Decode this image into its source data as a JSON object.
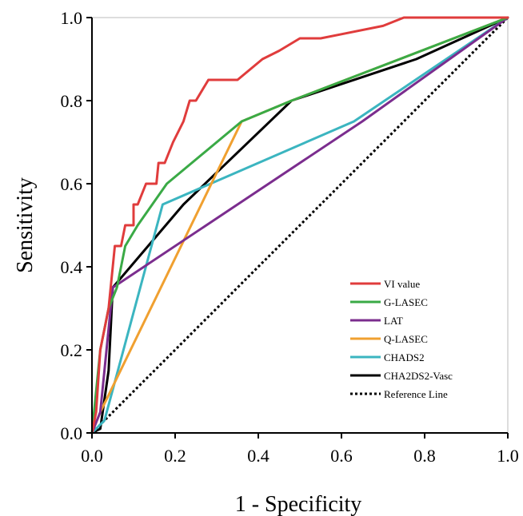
{
  "chart_data": {
    "type": "line",
    "title": "",
    "xlabel": "1 - Specificity",
    "ylabel": "Sensitivity",
    "xlim": [
      0,
      1
    ],
    "ylim": [
      0,
      1
    ],
    "xticks": [
      "0.0",
      "0.2",
      "0.4",
      "0.6",
      "0.8",
      "1.0"
    ],
    "yticks": [
      "0.0",
      "0.2",
      "0.4",
      "0.6",
      "0.8",
      "1.0"
    ],
    "grid": false,
    "legend_position": "bottom-right",
    "series": [
      {
        "name": "VI value",
        "color": "#e03c3c",
        "dash": "solid",
        "points": [
          [
            0,
            0
          ],
          [
            0.01,
            0.05
          ],
          [
            0.02,
            0.2
          ],
          [
            0.03,
            0.25
          ],
          [
            0.04,
            0.3
          ],
          [
            0.045,
            0.35
          ],
          [
            0.05,
            0.4
          ],
          [
            0.055,
            0.45
          ],
          [
            0.07,
            0.45
          ],
          [
            0.08,
            0.5
          ],
          [
            0.1,
            0.5
          ],
          [
            0.1,
            0.55
          ],
          [
            0.11,
            0.55
          ],
          [
            0.13,
            0.6
          ],
          [
            0.155,
            0.6
          ],
          [
            0.16,
            0.65
          ],
          [
            0.175,
            0.65
          ],
          [
            0.195,
            0.7
          ],
          [
            0.22,
            0.75
          ],
          [
            0.235,
            0.8
          ],
          [
            0.25,
            0.8
          ],
          [
            0.28,
            0.85
          ],
          [
            0.35,
            0.85
          ],
          [
            0.41,
            0.9
          ],
          [
            0.45,
            0.92
          ],
          [
            0.5,
            0.95
          ],
          [
            0.55,
            0.95
          ],
          [
            0.6,
            0.96
          ],
          [
            0.7,
            0.98
          ],
          [
            0.75,
            1.0
          ],
          [
            1.0,
            1.0
          ]
        ]
      },
      {
        "name": "G-LASEC",
        "color": "#3aaa46",
        "dash": "solid",
        "points": [
          [
            0,
            0
          ],
          [
            0.02,
            0.2
          ],
          [
            0.04,
            0.3
          ],
          [
            0.06,
            0.35
          ],
          [
            0.08,
            0.45
          ],
          [
            0.11,
            0.5
          ],
          [
            0.18,
            0.6
          ],
          [
            0.36,
            0.75
          ],
          [
            0.48,
            0.8
          ],
          [
            1.0,
            1.0
          ]
        ]
      },
      {
        "name": "LAT",
        "color": "#7b2d8e",
        "dash": "solid",
        "points": [
          [
            0,
            0
          ],
          [
            0.02,
            0.05
          ],
          [
            0.05,
            0.35
          ],
          [
            0.35,
            0.55
          ],
          [
            0.65,
            0.75
          ],
          [
            1.0,
            1.0
          ]
        ]
      },
      {
        "name": "Q-LASEC",
        "color": "#f0a030",
        "dash": "solid",
        "points": [
          [
            0,
            0
          ],
          [
            0.02,
            0.05
          ],
          [
            0.36,
            0.75
          ],
          [
            0.48,
            0.8
          ],
          [
            1.0,
            1.0
          ]
        ]
      },
      {
        "name": "CHADS2",
        "color": "#3bb5c0",
        "dash": "solid",
        "points": [
          [
            0,
            0
          ],
          [
            0.03,
            0.03
          ],
          [
            0.17,
            0.55
          ],
          [
            0.63,
            0.75
          ],
          [
            1.0,
            1.0
          ]
        ]
      },
      {
        "name": "CHA2DS2-Vasc",
        "color": "#000000",
        "dash": "solid",
        "points": [
          [
            0,
            0
          ],
          [
            0.02,
            0.01
          ],
          [
            0.04,
            0.15
          ],
          [
            0.05,
            0.35
          ],
          [
            0.22,
            0.55
          ],
          [
            0.48,
            0.8
          ],
          [
            0.78,
            0.9
          ],
          [
            1.0,
            1.0
          ]
        ]
      },
      {
        "name": "Reference Line",
        "color": "#000000",
        "dash": "dotted",
        "points": [
          [
            0,
            0
          ],
          [
            1,
            1
          ]
        ]
      }
    ]
  }
}
